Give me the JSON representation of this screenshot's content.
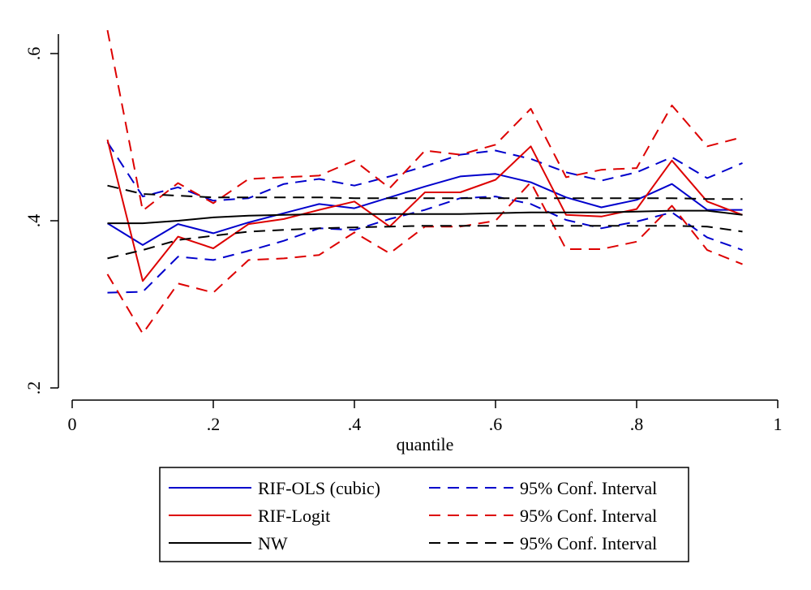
{
  "chart_data": {
    "type": "line",
    "title": "",
    "xlabel": "quantile",
    "ylabel": "",
    "xlim": [
      0,
      1
    ],
    "ylim": [
      0.2,
      0.6
    ],
    "x_ticks": [
      0,
      0.2,
      0.4,
      0.6,
      0.8,
      1
    ],
    "x_tick_labels": [
      "0",
      ".2",
      ".4",
      ".6",
      ".8",
      "1"
    ],
    "y_ticks": [
      0.2,
      0.4,
      0.6
    ],
    "y_tick_labels": [
      ".2",
      ".4",
      ".6"
    ],
    "x": [
      0.05,
      0.1,
      0.15,
      0.2,
      0.25,
      0.3,
      0.35,
      0.4,
      0.45,
      0.5,
      0.55,
      0.6,
      0.65,
      0.7,
      0.75,
      0.8,
      0.85,
      0.9,
      0.95
    ],
    "legend_position": "bottom",
    "series": [
      {
        "id": "rif-ols",
        "name": "RIF-OLS (cubic)",
        "color": "#0000cc",
        "dash": "solid",
        "values": [
          0.397,
          0.371,
          0.396,
          0.385,
          0.398,
          0.409,
          0.42,
          0.415,
          0.428,
          0.441,
          0.453,
          0.456,
          0.446,
          0.428,
          0.416,
          0.425,
          0.444,
          0.413,
          0.413
        ]
      },
      {
        "id": "rif-ols-ci-upper",
        "name": "95% Conf. Interval",
        "color": "#0000cc",
        "dash": "dashed",
        "values": [
          0.494,
          0.429,
          0.44,
          0.424,
          0.427,
          0.444,
          0.45,
          0.442,
          0.453,
          0.465,
          0.479,
          0.484,
          0.474,
          0.458,
          0.448,
          0.458,
          0.476,
          0.451,
          0.469
        ]
      },
      {
        "id": "rif-ols-ci-lower",
        "name": "95% Conf. Interval",
        "color": "#0000cc",
        "dash": "dashed",
        "values": [
          0.314,
          0.315,
          0.357,
          0.353,
          0.364,
          0.376,
          0.391,
          0.389,
          0.402,
          0.413,
          0.427,
          0.429,
          0.42,
          0.401,
          0.391,
          0.399,
          0.41,
          0.38,
          0.365
        ]
      },
      {
        "id": "rif-logit",
        "name": "RIF-Logit",
        "color": "#dd0000",
        "dash": "solid",
        "values": [
          0.497,
          0.328,
          0.381,
          0.367,
          0.396,
          0.402,
          0.413,
          0.423,
          0.393,
          0.434,
          0.434,
          0.449,
          0.489,
          0.407,
          0.405,
          0.414,
          0.472,
          0.423,
          0.407
        ]
      },
      {
        "id": "rif-logit-ci-upper",
        "name": "95% Conf. Interval",
        "color": "#dd0000",
        "dash": "dashed",
        "values": [
          0.628,
          0.412,
          0.445,
          0.421,
          0.45,
          0.452,
          0.454,
          0.472,
          0.439,
          0.484,
          0.479,
          0.491,
          0.534,
          0.452,
          0.461,
          0.463,
          0.538,
          0.489,
          0.5
        ]
      },
      {
        "id": "rif-logit-ci-lower",
        "name": "95% Conf. Interval",
        "color": "#dd0000",
        "dash": "dashed",
        "values": [
          0.336,
          0.265,
          0.325,
          0.314,
          0.353,
          0.355,
          0.359,
          0.386,
          0.361,
          0.393,
          0.393,
          0.4,
          0.446,
          0.366,
          0.366,
          0.375,
          0.418,
          0.365,
          0.348
        ]
      },
      {
        "id": "nw",
        "name": "NW",
        "color": "#000000",
        "dash": "solid",
        "values": [
          0.397,
          0.397,
          0.4,
          0.404,
          0.406,
          0.407,
          0.408,
          0.408,
          0.408,
          0.408,
          0.408,
          0.409,
          0.41,
          0.41,
          0.41,
          0.411,
          0.412,
          0.412,
          0.407
        ]
      },
      {
        "id": "nw-ci-upper",
        "name": "95% Conf. Interval",
        "color": "#000000",
        "dash": "dashed",
        "values": [
          0.442,
          0.432,
          0.43,
          0.428,
          0.428,
          0.428,
          0.428,
          0.427,
          0.427,
          0.427,
          0.427,
          0.427,
          0.427,
          0.427,
          0.427,
          0.427,
          0.427,
          0.426,
          0.426
        ]
      },
      {
        "id": "nw-ci-lower",
        "name": "95% Conf. Interval",
        "color": "#000000",
        "dash": "dashed",
        "values": [
          0.355,
          0.365,
          0.377,
          0.382,
          0.387,
          0.389,
          0.391,
          0.392,
          0.393,
          0.394,
          0.394,
          0.394,
          0.394,
          0.394,
          0.394,
          0.394,
          0.394,
          0.393,
          0.387
        ]
      }
    ],
    "legend": [
      {
        "label": "RIF-OLS (cubic)",
        "color": "#0000cc",
        "dash": "solid"
      },
      {
        "label": "95% Conf. Interval",
        "color": "#0000cc",
        "dash": "dashed"
      },
      {
        "label": "RIF-Logit",
        "color": "#dd0000",
        "dash": "solid"
      },
      {
        "label": "95% Conf. Interval",
        "color": "#dd0000",
        "dash": "dashed"
      },
      {
        "label": "NW",
        "color": "#000000",
        "dash": "solid"
      },
      {
        "label": "95% Conf. Interval",
        "color": "#000000",
        "dash": "dashed"
      }
    ]
  }
}
